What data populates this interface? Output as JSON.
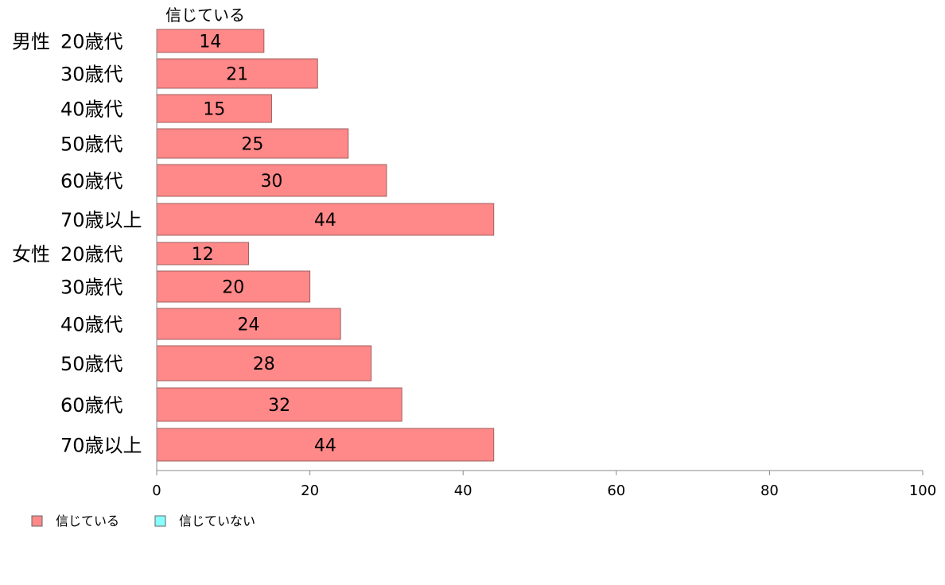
{
  "chart_data": {
    "type": "bar",
    "orientation": "horizontal",
    "series_header": "信じている",
    "groups": [
      {
        "label": "男性",
        "categories": [
          "20歳代",
          "30歳代",
          "40歳代",
          "50歳代",
          "60歳代",
          "70歳以上"
        ],
        "values": [
          14,
          21,
          15,
          25,
          30,
          44
        ]
      },
      {
        "label": "女性",
        "categories": [
          "20歳代",
          "30歳代",
          "40歳代",
          "50歳代",
          "60歳代",
          "70歳以上"
        ],
        "values": [
          12,
          20,
          24,
          28,
          32,
          44
        ]
      }
    ],
    "series": [
      {
        "name": "信じている",
        "color": "#ff8888"
      },
      {
        "name": "信じていない",
        "color": "#88ffff"
      }
    ],
    "xlim": [
      0,
      100
    ],
    "xticks": [
      0,
      20,
      40,
      60,
      80,
      100
    ],
    "grid": false,
    "legend_position": "bottom-left"
  }
}
